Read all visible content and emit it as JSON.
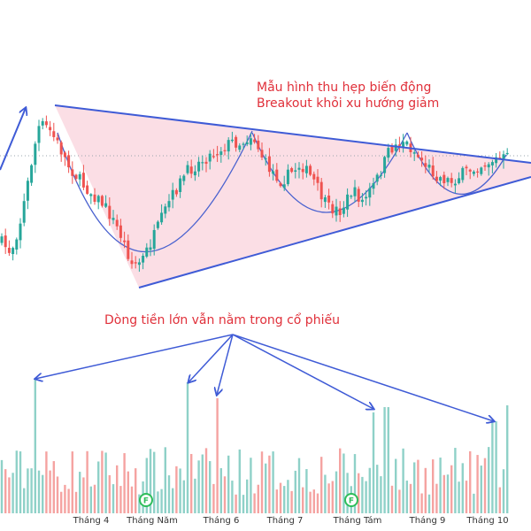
{
  "chart_data": {
    "type": "candlestick",
    "annotations": {
      "pattern_title": "Mẫu hình thu hẹp biến động",
      "breakout_note": "Breakout khỏi xu hướng giảm",
      "volume_note": "Dòng tiền lớn vẫn nằm trong cổ phiếu"
    },
    "x_ticks": [
      "Tháng 4",
      "Tháng Năm",
      "Tháng 6",
      "Tháng 7",
      "Tháng Tám",
      "Tháng 9",
      "Tháng 10"
    ],
    "event_badges": [
      "F",
      "F"
    ],
    "colors": {
      "up": "#26a69a",
      "down": "#ef5350",
      "volume_up": "#8fd1c8",
      "volume_down": "#f5a3a1",
      "trendline": "#3f5bd6",
      "pattern_fill": "#f7c3cf",
      "annotation_text": "#e0303a",
      "badge": "#2ebd5a"
    }
  }
}
